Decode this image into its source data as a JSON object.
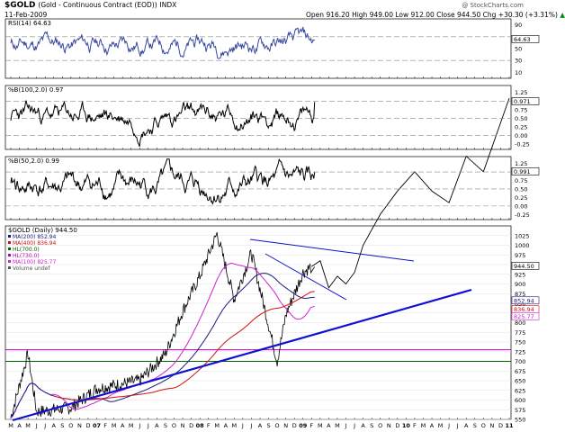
{
  "header": {
    "symbol": "$GOLD",
    "name": "(Gold - Continuous Contract (EOD))",
    "exchange": "INDX",
    "date": "11-Feb-2009",
    "watermark": "@ StockCharts.com",
    "ohlc": {
      "open_label": "Open",
      "open": "916.20",
      "high_label": "High",
      "high": "949.00",
      "low_label": "Low",
      "low": "912.00",
      "close_label": "Close",
      "close": "944.50",
      "chg_label": "Chg",
      "chg": "+30.30 (+3.31%)",
      "chg_arrow": "▲"
    }
  },
  "colors": {
    "price": "#000000",
    "ma200": "#1a1a80",
    "ma400": "#d01010",
    "ma100": "#d020d0",
    "trend": "#1010d0",
    "hline_green": "#006400",
    "hline_magenta": "#c000c0",
    "rsi": "#3a4aa0"
  },
  "panels": {
    "rsi": {
      "label": "RSI(14) 64.63",
      "ticks": [
        "90",
        "70",
        "50",
        "30",
        "10"
      ],
      "tag": "64.63"
    },
    "pctb100": {
      "label": "%B(100,2.0) 0.97",
      "ticks": [
        "1.25",
        "1.00",
        "0.75",
        "0.50",
        "0.25",
        "0.00",
        "-0.25"
      ],
      "tag": "0.971"
    },
    "pctb50": {
      "label": "%B(50,2.0) 0.99",
      "ticks": [
        "1.25",
        "1.00",
        "0.75",
        "0.50",
        "0.25",
        "0.00",
        "-0.25"
      ],
      "tag": "0.991"
    },
    "price": {
      "label": "$GOLD (Daily) 944.50",
      "legend": [
        {
          "text": "MA(200) 852.94",
          "color": "#1a1a80"
        },
        {
          "text": "MA(400) 836.94",
          "color": "#d01010"
        },
        {
          "text": "HL(700.0)",
          "color": "#006400"
        },
        {
          "text": "HL(730.0)",
          "color": "#c000c0"
        },
        {
          "text": "MA(100) 825.77",
          "color": "#d020d0"
        },
        {
          "text": "Volume undef",
          "color": "#555555"
        }
      ],
      "ticks": [
        "1025",
        "1000",
        "975",
        "950",
        "925",
        "900",
        "875",
        "850",
        "825",
        "800",
        "775",
        "750",
        "725",
        "700",
        "675",
        "650",
        "625",
        "600",
        "575",
        "550"
      ],
      "tags": {
        "close": "944.50",
        "ma200": "852.94",
        "ma400": "836.94",
        "ma100": "825.77"
      }
    }
  },
  "x_axis": {
    "labels": [
      "M",
      "A",
      "M",
      "J",
      "J",
      "A",
      "S",
      "O",
      "N",
      "D",
      "07",
      "F",
      "M",
      "A",
      "M",
      "J",
      "J",
      "A",
      "S",
      "O",
      "N",
      "D",
      "08",
      "F",
      "M",
      "A",
      "M",
      "J",
      "J",
      "A",
      "S",
      "O",
      "N",
      "D",
      "09",
      "F",
      "M",
      "A",
      "M",
      "J",
      "J",
      "A",
      "S",
      "O",
      "N",
      "D",
      "10",
      "F",
      "M",
      "A",
      "M",
      "J",
      "J",
      "A",
      "S",
      "O",
      "N",
      "D",
      "11"
    ]
  },
  "chart_data": {
    "type": "line",
    "symbol": "$GOLD",
    "period": "Daily",
    "price_ylim": [
      550,
      1050
    ],
    "price_milestones": [
      {
        "date": "2006-03",
        "value": 555
      },
      {
        "date": "2006-05",
        "value": 720
      },
      {
        "date": "2006-06",
        "value": 570
      },
      {
        "date": "2006-10",
        "value": 580
      },
      {
        "date": "2007-01",
        "value": 630
      },
      {
        "date": "2007-06",
        "value": 650
      },
      {
        "date": "2007-09",
        "value": 720
      },
      {
        "date": "2007-11",
        "value": 830
      },
      {
        "date": "2008-01",
        "value": 920
      },
      {
        "date": "2008-03",
        "value": 1030
      },
      {
        "date": "2008-05",
        "value": 860
      },
      {
        "date": "2008-07",
        "value": 980
      },
      {
        "date": "2008-10",
        "value": 700
      },
      {
        "date": "2008-11",
        "value": 820
      },
      {
        "date": "2009-01",
        "value": 930
      },
      {
        "date": "2009-02",
        "value": 944.5
      }
    ],
    "projection_ylim": [
      550,
      1050
    ],
    "projection": [
      {
        "date": "2009-02",
        "value": 945
      },
      {
        "date": "2009-03",
        "value": 960
      },
      {
        "date": "2009-04",
        "value": 890
      },
      {
        "date": "2009-05",
        "value": 920
      },
      {
        "date": "2009-06",
        "value": 900
      },
      {
        "date": "2009-07",
        "value": 930
      },
      {
        "date": "2009-08",
        "value": 1000
      },
      {
        "date": "2009-10",
        "value": 1080
      },
      {
        "date": "2009-12",
        "value": 1140
      },
      {
        "date": "2010-02",
        "value": 1190
      },
      {
        "date": "2010-04",
        "value": 1140
      },
      {
        "date": "2010-06",
        "value": 1110
      },
      {
        "date": "2010-08",
        "value": 1230
      },
      {
        "date": "2010-10",
        "value": 1190
      },
      {
        "date": "2011-01",
        "value": 1380
      }
    ],
    "rsi_ylim": [
      0,
      100
    ],
    "rsi_last": 64.63,
    "pctb100_last": 0.97,
    "pctb50_last": 0.99,
    "horizontal_lines": [
      {
        "name": "HL(700.0)",
        "value": 700
      },
      {
        "name": "HL(730.0)",
        "value": 730
      }
    ]
  }
}
